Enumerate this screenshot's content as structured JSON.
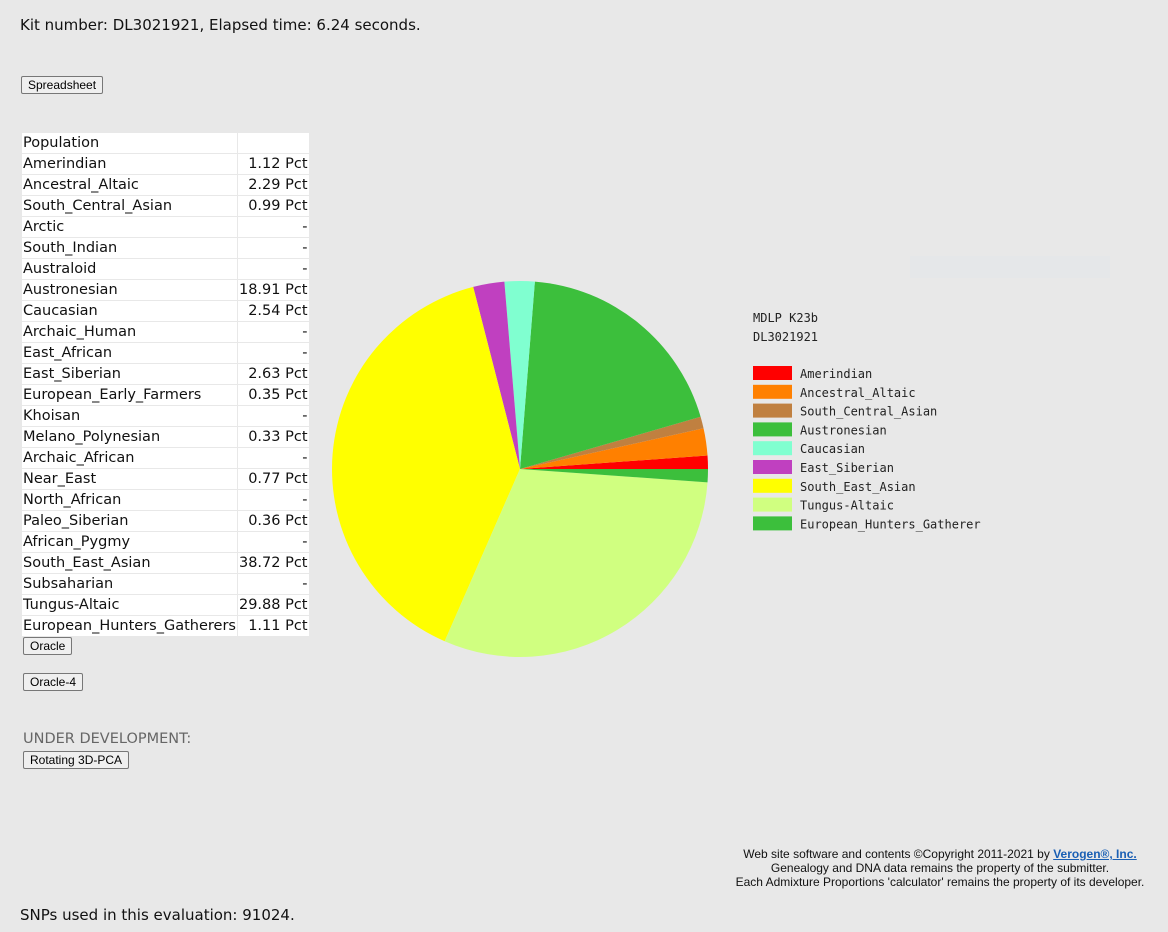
{
  "header": {
    "status": "Kit number: DL3021921, Elapsed time: 6.24 seconds."
  },
  "buttons": {
    "spreadsheet": "Spreadsheet",
    "oracle": "Oracle",
    "oracle4": "Oracle-4",
    "pca": "Rotating 3D-PCA"
  },
  "table": {
    "header": "Population",
    "rows": [
      {
        "name": "Amerindian",
        "value": "1.12 Pct"
      },
      {
        "name": "Ancestral_Altaic",
        "value": "2.29 Pct"
      },
      {
        "name": "South_Central_Asian",
        "value": "0.99 Pct"
      },
      {
        "name": "Arctic",
        "value": "-"
      },
      {
        "name": "South_Indian",
        "value": "-"
      },
      {
        "name": "Australoid",
        "value": "-"
      },
      {
        "name": "Austronesian",
        "value": "18.91 Pct"
      },
      {
        "name": "Caucasian",
        "value": "2.54 Pct"
      },
      {
        "name": "Archaic_Human",
        "value": "-"
      },
      {
        "name": "East_African",
        "value": "-"
      },
      {
        "name": "East_Siberian",
        "value": "2.63 Pct"
      },
      {
        "name": "European_Early_Farmers",
        "value": "0.35 Pct"
      },
      {
        "name": "Khoisan",
        "value": "-"
      },
      {
        "name": "Melano_Polynesian",
        "value": "0.33 Pct"
      },
      {
        "name": "Archaic_African",
        "value": "-"
      },
      {
        "name": "Near_East",
        "value": "0.77 Pct"
      },
      {
        "name": "North_African",
        "value": "-"
      },
      {
        "name": "Paleo_Siberian",
        "value": "0.36 Pct"
      },
      {
        "name": "African_Pygmy",
        "value": "-"
      },
      {
        "name": "South_East_Asian",
        "value": "38.72 Pct"
      },
      {
        "name": "Subsaharian",
        "value": "-"
      },
      {
        "name": "Tungus-Altaic",
        "value": "29.88 Pct"
      },
      {
        "name": "European_Hunters_Gatherers",
        "value": "1.11 Pct"
      }
    ]
  },
  "under_development": "UNDER DEVELOPMENT:",
  "footer": {
    "line1_prefix": "Web site software and contents ©Copyright 2011-2021 by ",
    "line1_link": "Verogen®, Inc.",
    "line2": "Genealogy and DNA data remains the property of the submitter.",
    "line3": "Each Admixture Proportions 'calculator' remains the property of its developer."
  },
  "snps": "SNPs used in this evaluation: 91024.",
  "chart_data": {
    "type": "pie",
    "title": "MDLP K23b",
    "subtitle": "DL3021921",
    "series": [
      {
        "name": "Amerindian",
        "value": 1.12,
        "color": "#ff0000"
      },
      {
        "name": "Ancestral_Altaic",
        "value": 2.29,
        "color": "#ff8000"
      },
      {
        "name": "South_Central_Asian",
        "value": 0.99,
        "color": "#c08040"
      },
      {
        "name": "Austronesian",
        "value": 18.91,
        "color": "#3cbf3c"
      },
      {
        "name": "Caucasian",
        "value": 2.54,
        "color": "#80ffd0"
      },
      {
        "name": "East_Siberian",
        "value": 2.63,
        "color": "#c040c0"
      },
      {
        "name": "South_East_Asian",
        "value": 38.72,
        "color": "#ffff00"
      },
      {
        "name": "Tungus-Altaic",
        "value": 29.88,
        "color": "#d0ff80"
      },
      {
        "name": "European_Hunters_Gatherer",
        "value": 1.11,
        "color": "#3cbf3c"
      }
    ],
    "legend_position": "right"
  }
}
